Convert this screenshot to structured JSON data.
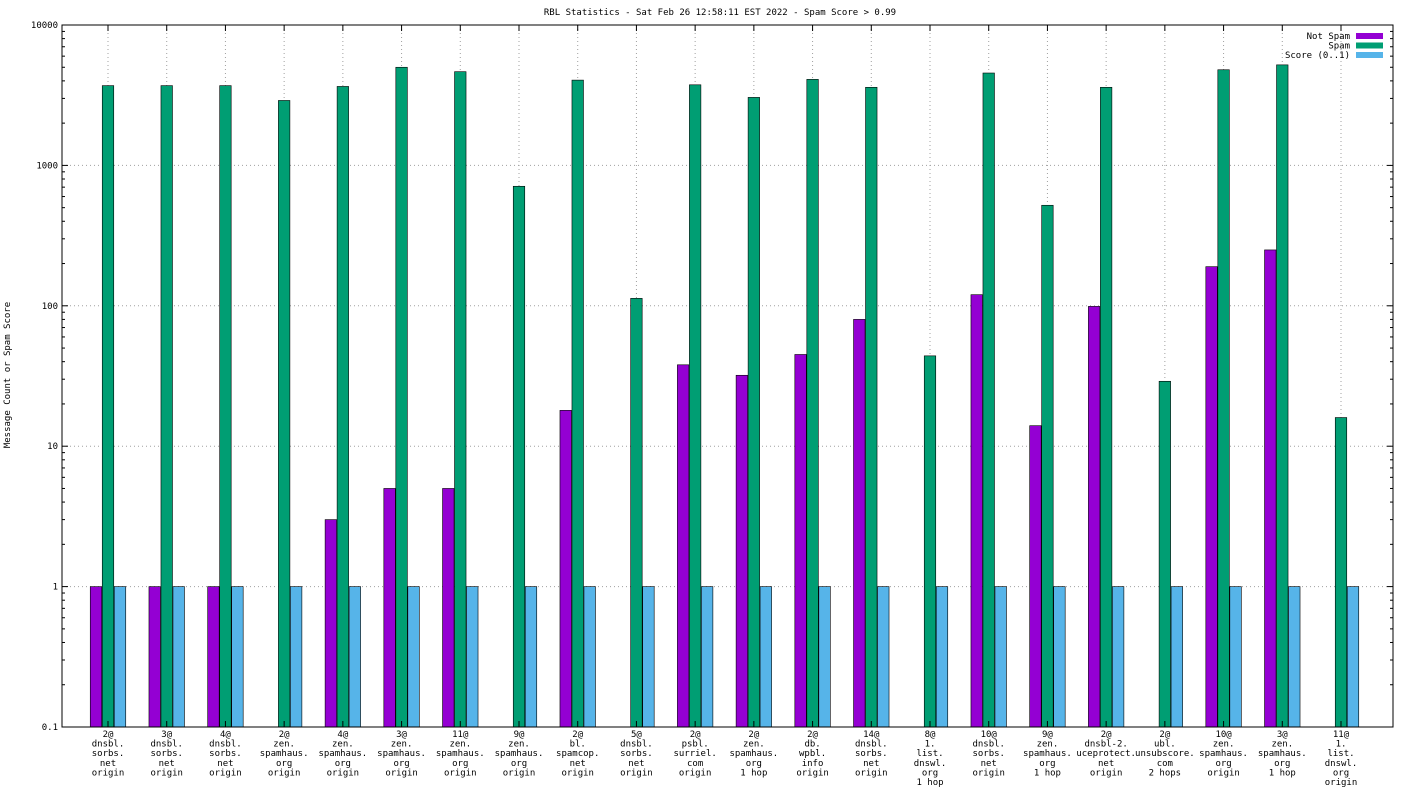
{
  "chart_data": {
    "type": "bar",
    "title": "RBL Statistics - Sat Feb 26 12:58:11 EST 2022 - Spam Score > 0.99",
    "ylabel": "Message Count or Spam Score",
    "xlabel": "",
    "yscale": "log",
    "ylim": [
      0.1,
      10000
    ],
    "yticks": [
      "0.1",
      "1",
      "10",
      "100",
      "1000",
      "10000"
    ],
    "grid": true,
    "legend_position": "top-right",
    "categories": [
      [
        "2@",
        "dnsbl.",
        "sorbs.",
        "net",
        "origin"
      ],
      [
        "3@",
        "dnsbl.",
        "sorbs.",
        "net",
        "origin"
      ],
      [
        "4@",
        "dnsbl.",
        "sorbs.",
        "net",
        "origin"
      ],
      [
        "2@",
        "zen.",
        "spamhaus.",
        "org",
        "origin"
      ],
      [
        "4@",
        "zen.",
        "spamhaus.",
        "org",
        "origin"
      ],
      [
        "3@",
        "zen.",
        "spamhaus.",
        "org",
        "origin"
      ],
      [
        "11@",
        "zen.",
        "spamhaus.",
        "org",
        "origin"
      ],
      [
        "9@",
        "zen.",
        "spamhaus.",
        "org",
        "origin"
      ],
      [
        "2@",
        "bl.",
        "spamcop.",
        "net",
        "origin"
      ],
      [
        "5@",
        "dnsbl.",
        "sorbs.",
        "net",
        "origin"
      ],
      [
        "2@",
        "psbl.",
        "surriel.",
        "com",
        "origin"
      ],
      [
        "2@",
        "zen.",
        "spamhaus.",
        "org",
        "1 hop"
      ],
      [
        "2@",
        "db.",
        "wpbl.",
        "info",
        "origin"
      ],
      [
        "14@",
        "dnsbl.",
        "sorbs.",
        "net",
        "origin"
      ],
      [
        "8@",
        "1.",
        "list.",
        "dnswl.",
        "org",
        "1 hop"
      ],
      [
        "10@",
        "dnsbl.",
        "sorbs.",
        "net",
        "origin"
      ],
      [
        "9@",
        "zen.",
        "spamhaus.",
        "org",
        "1 hop"
      ],
      [
        "2@",
        "dnsbl-2.",
        "uceprotect.",
        "net",
        "origin"
      ],
      [
        "2@",
        "ubl.",
        "unsubscore.",
        "com",
        "2 hops"
      ],
      [
        "10@",
        "zen.",
        "spamhaus.",
        "org",
        "origin"
      ],
      [
        "3@",
        "zen.",
        "spamhaus.",
        "org",
        "1 hop"
      ],
      [
        "11@",
        "1.",
        "list.",
        "dnswl.",
        "org",
        "origin"
      ]
    ],
    "series": [
      {
        "name": "Not Spam",
        "color": "#9400d3",
        "values": [
          1,
          1,
          1,
          null,
          3,
          5,
          5,
          null,
          18,
          null,
          38,
          32,
          45,
          80,
          null,
          120,
          14,
          99,
          null,
          190,
          250,
          null
        ]
      },
      {
        "name": "Spam",
        "color": "#009e73",
        "values": [
          3700,
          3700,
          3700,
          2900,
          3650,
          5000,
          4650,
          710,
          4050,
          113,
          3750,
          3050,
          4100,
          3600,
          44,
          4550,
          520,
          3600,
          29,
          4800,
          5200,
          16
        ]
      },
      {
        "name": "Score (0..1)",
        "color": "#56b4e9",
        "values": [
          1,
          1,
          1,
          1,
          1,
          1,
          1,
          1,
          1,
          1,
          1,
          1,
          1,
          1,
          1,
          1,
          1,
          1,
          1,
          1,
          1,
          1
        ]
      }
    ]
  }
}
